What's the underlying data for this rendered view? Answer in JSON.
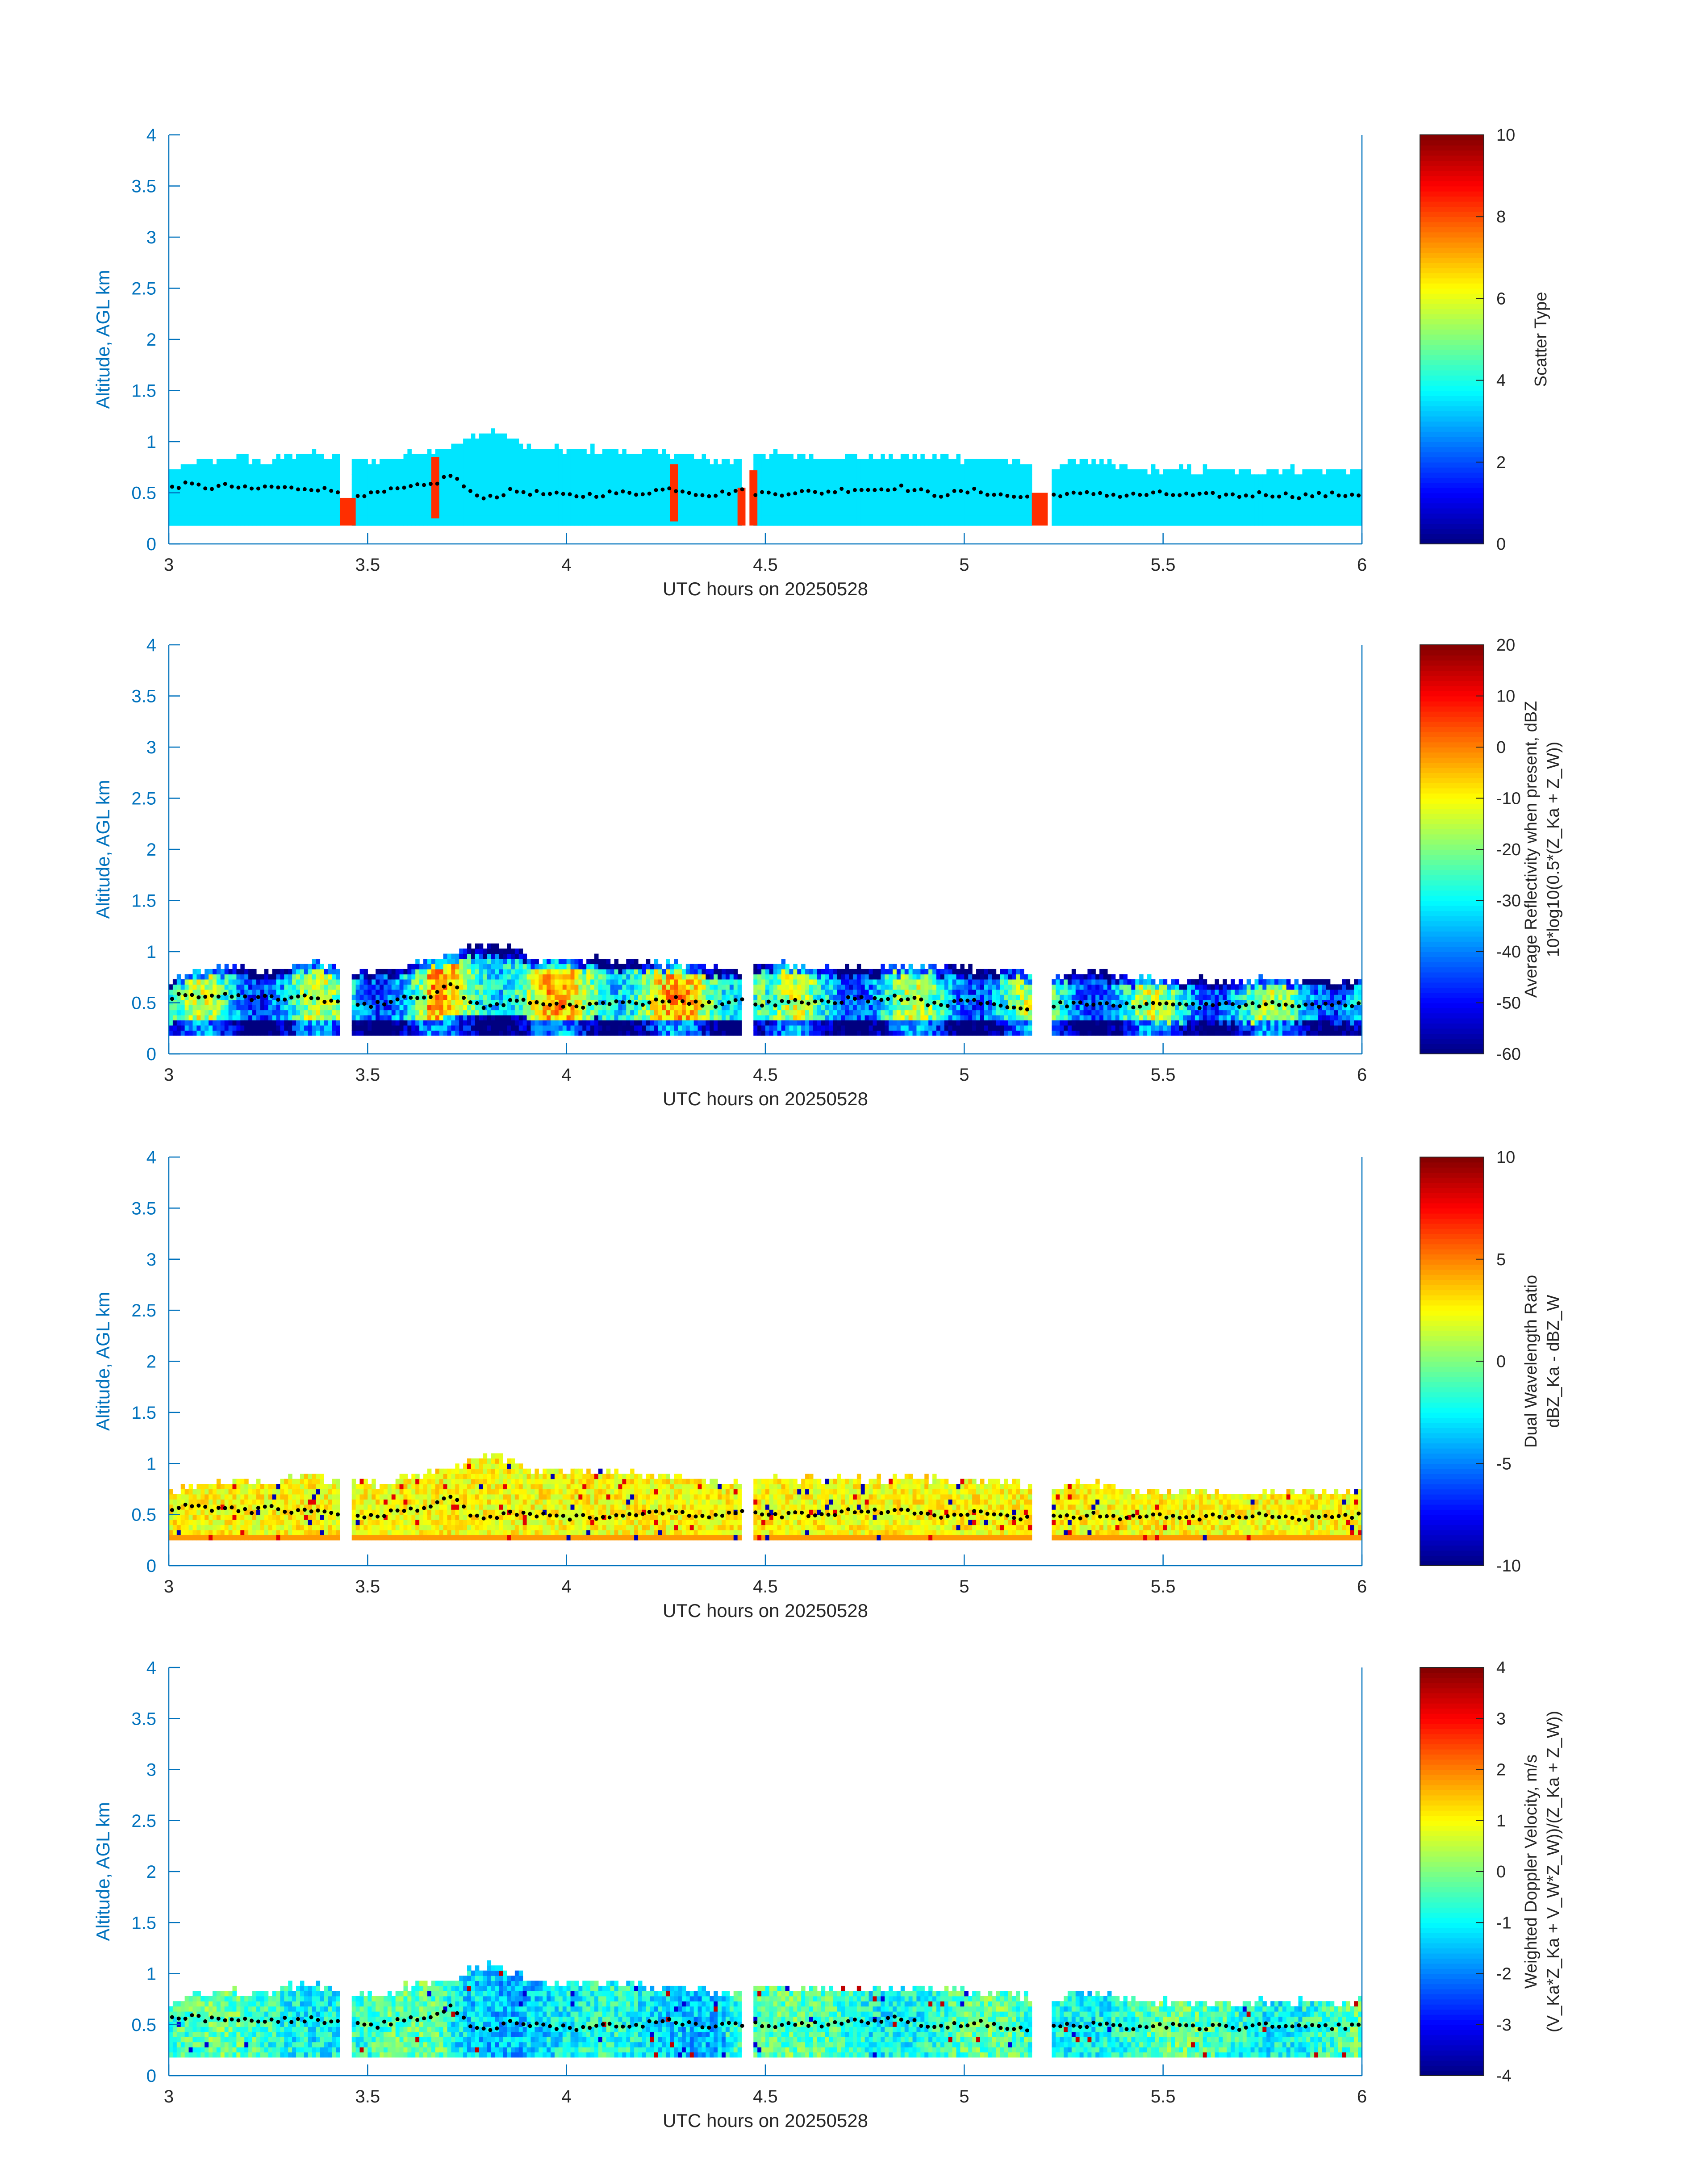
{
  "figure": {
    "background": "#ffffff",
    "axis_color": "#0072BD",
    "text_color": "#262626"
  },
  "chart_data": [
    {
      "type": "heatmap",
      "title": "",
      "xlabel": "UTC hours on 20250528",
      "ylabel": "Altitude, AGL km",
      "xlim": [
        3,
        6
      ],
      "ylim": [
        0,
        4
      ],
      "xticks": [
        "3",
        "3.5",
        "4",
        "4.5",
        "5",
        "5.5",
        "6"
      ],
      "yticks": [
        "0",
        "0.5",
        "1",
        "1.5",
        "2",
        "2.5",
        "3",
        "3.5",
        "4"
      ],
      "colorbar": {
        "label": "Scatter Type",
        "sublabel": "",
        "clim": [
          0,
          10
        ],
        "ticks": [
          "0",
          "2",
          "4",
          "6",
          "8",
          "10"
        ]
      },
      "field": "scatter_type",
      "dominant_value": 3.5,
      "anomaly_value": 8.3,
      "anomalies": [
        {
          "x0": 3.43,
          "x1": 3.47,
          "ybot": 0.18,
          "ytop": 0.45
        },
        {
          "x0": 3.66,
          "x1": 3.68,
          "ybot": 0.25,
          "ytop": 0.85
        },
        {
          "x0": 4.26,
          "x1": 4.28,
          "ybot": 0.22,
          "ytop": 0.78
        },
        {
          "x0": 4.43,
          "x1": 4.45,
          "ybot": 0.18,
          "ytop": 0.55
        },
        {
          "x0": 4.46,
          "x1": 4.48,
          "ybot": 0.18,
          "ytop": 0.72
        },
        {
          "x0": 5.17,
          "x1": 5.21,
          "ybot": 0.18,
          "ytop": 0.5
        }
      ],
      "cloud_top_km": [
        0.68,
        0.75,
        0.78,
        0.82,
        0.8,
        0.78,
        0.85,
        0.88,
        0.82,
        0.8,
        0.78,
        0.8,
        0.86,
        0.9,
        0.92,
        1.02,
        1.07,
        1.0,
        0.9,
        0.9,
        0.9,
        0.9,
        0.9,
        0.88,
        0.86,
        0.86,
        0.82,
        0.8,
        0.78,
        0.85,
        0.86,
        0.84,
        0.82,
        0.82,
        0.82,
        0.82,
        0.84,
        0.84,
        0.82,
        0.82,
        0.8,
        0.8,
        0.78,
        0.72,
        0.74,
        0.8,
        0.78,
        0.72,
        0.7,
        0.7,
        0.7,
        0.7,
        0.7,
        0.7,
        0.7,
        0.7,
        0.7,
        0.7,
        0.7,
        0.7
      ],
      "cloud_base_km": 0.18,
      "gaps": [
        [
          3.43,
          3.46
        ],
        [
          4.445,
          4.47
        ],
        [
          5.17,
          5.22
        ]
      ],
      "dotted_line_km": [
        0.56,
        0.58,
        0.55,
        0.57,
        0.53,
        0.56,
        0.54,
        0.55,
        0.52,
        0.5,
        0.48,
        0.52,
        0.55,
        0.58,
        0.68,
        0.48,
        0.46,
        0.52,
        0.5,
        0.48,
        0.47,
        0.48,
        0.5,
        0.49,
        0.52,
        0.54,
        0.5,
        0.48,
        0.52,
        0.5,
        0.49,
        0.51,
        0.5,
        0.52,
        0.54,
        0.53,
        0.56,
        0.52,
        0.48,
        0.5,
        0.52,
        0.48,
        0.46,
        0.45,
        0.49,
        0.48,
        0.5,
        0.47,
        0.48,
        0.49,
        0.48,
        0.47,
        0.48,
        0.47,
        0.49,
        0.48,
        0.47,
        0.48,
        0.48,
        0.49
      ]
    },
    {
      "type": "heatmap",
      "title": "",
      "xlabel": "UTC hours on 20250528",
      "ylabel": "Altitude, AGL km",
      "xlim": [
        3,
        6
      ],
      "ylim": [
        0,
        4
      ],
      "xticks": [
        "3",
        "3.5",
        "4",
        "4.5",
        "5",
        "5.5",
        "6"
      ],
      "yticks": [
        "0",
        "0.5",
        "1",
        "1.5",
        "2",
        "2.5",
        "3",
        "3.5",
        "4"
      ],
      "colorbar": {
        "label": "Average Reflectivity when present, dBZ",
        "sublabel": "10*log10(0.5*(Z_Ka + Z_W))",
        "clim": [
          -60,
          20
        ],
        "ticks": [
          "-60",
          "-50",
          "-40",
          "-30",
          "-20",
          "-10",
          "0",
          "10",
          "20"
        ]
      },
      "field": "reflectivity"
    },
    {
      "type": "heatmap",
      "title": "",
      "xlabel": "UTC hours on 20250528",
      "ylabel": "Altitude, AGL km",
      "xlim": [
        3,
        6
      ],
      "ylim": [
        0,
        4
      ],
      "xticks": [
        "3",
        "3.5",
        "4",
        "4.5",
        "5",
        "5.5",
        "6"
      ],
      "yticks": [
        "0",
        "0.5",
        "1",
        "1.5",
        "2",
        "2.5",
        "3",
        "3.5",
        "4"
      ],
      "colorbar": {
        "label": "Dual Wavelength Ratio",
        "sublabel": "dBZ_Ka - dBZ_W",
        "clim": [
          -10,
          10
        ],
        "ticks": [
          "-10",
          "-5",
          "0",
          "5",
          "10"
        ]
      },
      "field": "dwr"
    },
    {
      "type": "heatmap",
      "title": "",
      "xlabel": "UTC hours on 20250528",
      "ylabel": "Altitude, AGL km",
      "xlim": [
        3,
        6
      ],
      "ylim": [
        0,
        4
      ],
      "xticks": [
        "3",
        "3.5",
        "4",
        "4.5",
        "5",
        "5.5",
        "6"
      ],
      "yticks": [
        "0",
        "0.5",
        "1",
        "1.5",
        "2",
        "2.5",
        "3",
        "3.5",
        "4"
      ],
      "colorbar": {
        "label": "Weighted Doppler Velocity, m/s",
        "sublabel": "(V_Ka*Z_Ka + V_W*Z_W))/(Z_Ka + Z_W))",
        "clim": [
          -4,
          4
        ],
        "ticks": [
          "-4",
          "-3",
          "-2",
          "-1",
          "0",
          "1",
          "2",
          "3",
          "4"
        ]
      },
      "field": "velocity"
    }
  ]
}
